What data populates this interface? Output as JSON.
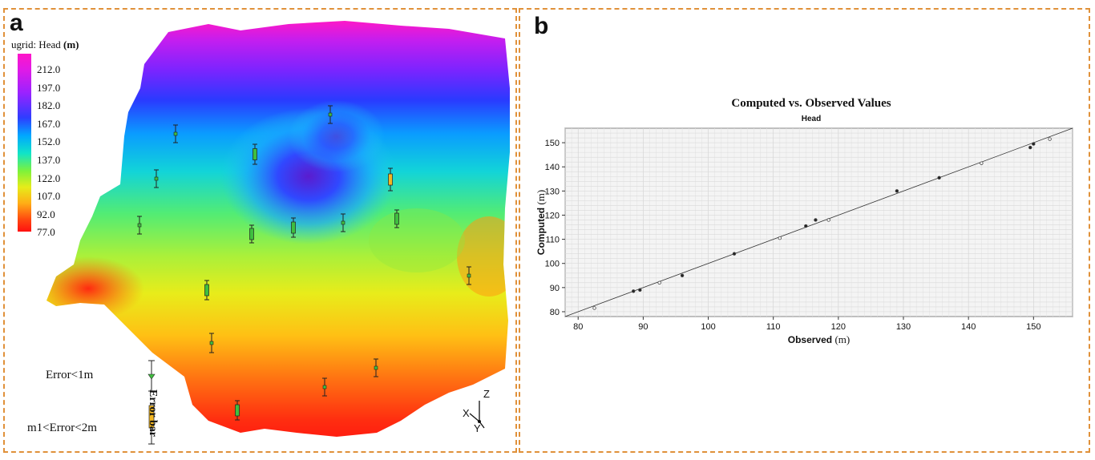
{
  "panel_a": {
    "letter": "a",
    "legend_title": "ugrid: Head",
    "legend_unit": "(m)",
    "colorbar_ticks": [
      "212.0",
      "197.0",
      "182.0",
      "167.0",
      "152.0",
      "137.0",
      "122.0",
      "107.0",
      "92.0",
      "77.0"
    ],
    "error_legend": {
      "small_label": "Error<1m",
      "medium_label": "m1<Error<2m",
      "bar_label": "Error bar",
      "small_color": "#3fbf3f",
      "medium_color": "#f2b622"
    },
    "triad": {
      "x": "X",
      "y": "Y",
      "z": "Z"
    }
  },
  "panel_b": {
    "letter": "b",
    "chart_data": {
      "type": "scatter",
      "title": "Computed vs. Observed Values",
      "subtitle": "Head",
      "xlabel": "Observed",
      "ylabel": "Computed",
      "unit": "(m)",
      "xlim": [
        78,
        156
      ],
      "ylim": [
        78,
        156
      ],
      "xticks": [
        80,
        90,
        100,
        110,
        120,
        130,
        140,
        150
      ],
      "yticks": [
        80,
        90,
        100,
        110,
        120,
        130,
        140,
        150
      ],
      "grid": true,
      "reference_line": "y = x",
      "points": [
        {
          "x": 82.5,
          "y": 81.5
        },
        {
          "x": 88.5,
          "y": 88.5
        },
        {
          "x": 89.5,
          "y": 89
        },
        {
          "x": 92.5,
          "y": 92
        },
        {
          "x": 96,
          "y": 95
        },
        {
          "x": 104,
          "y": 104
        },
        {
          "x": 111,
          "y": 110.5
        },
        {
          "x": 115,
          "y": 115.5
        },
        {
          "x": 116.5,
          "y": 118
        },
        {
          "x": 118.5,
          "y": 118
        },
        {
          "x": 129,
          "y": 130
        },
        {
          "x": 135.5,
          "y": 135.5
        },
        {
          "x": 142,
          "y": 141.5
        },
        {
          "x": 149.5,
          "y": 148
        },
        {
          "x": 150,
          "y": 149.5
        },
        {
          "x": 152.5,
          "y": 151.5
        }
      ]
    }
  }
}
